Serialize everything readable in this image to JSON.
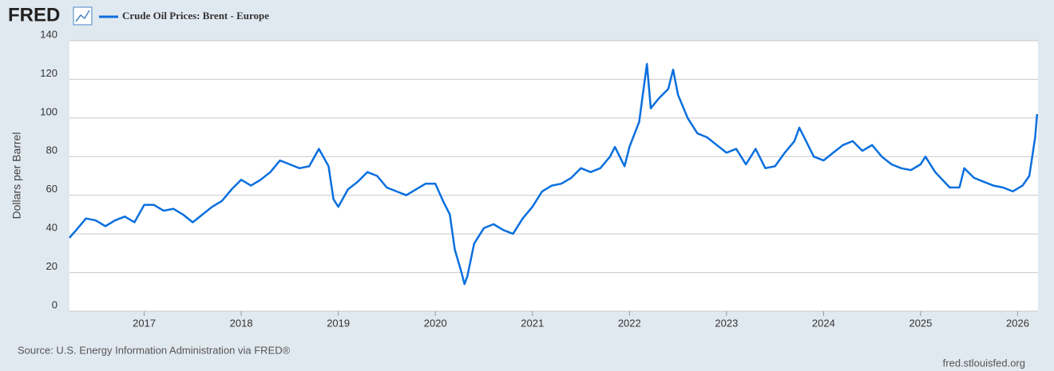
{
  "chart_data": {
    "type": "line",
    "logo": "FRED",
    "y_label": "Dollars per Barrel",
    "source": "Source: U.S. Energy Information Administration via FRED®",
    "credit": "fred.stlouisfed.org",
    "xlim": [
      2016.23,
      2026.21
    ],
    "xticks": [
      2017,
      2018,
      2019,
      2020,
      2021,
      2022,
      2023,
      2024,
      2025,
      2026
    ],
    "ylim": [
      0,
      140
    ],
    "yticks": [
      0,
      20,
      40,
      60,
      80,
      100,
      120,
      140
    ],
    "grid": true,
    "x": [
      2016.23,
      2016.3,
      2016.4,
      2016.5,
      2016.6,
      2016.7,
      2016.8,
      2016.9,
      2017.0,
      2017.1,
      2017.2,
      2017.3,
      2017.4,
      2017.5,
      2017.6,
      2017.7,
      2017.8,
      2017.9,
      2018.0,
      2018.1,
      2018.2,
      2018.3,
      2018.4,
      2018.5,
      2018.6,
      2018.7,
      2018.8,
      2018.9,
      2018.95,
      2019.0,
      2019.1,
      2019.2,
      2019.3,
      2019.4,
      2019.5,
      2019.6,
      2019.7,
      2019.8,
      2019.9,
      2020.0,
      2020.08,
      2020.15,
      2020.2,
      2020.27,
      2020.3,
      2020.33,
      2020.4,
      2020.5,
      2020.6,
      2020.7,
      2020.8,
      2020.9,
      2021.0,
      2021.1,
      2021.2,
      2021.3,
      2021.4,
      2021.5,
      2021.6,
      2021.7,
      2021.8,
      2021.85,
      2021.95,
      2022.0,
      2022.1,
      2022.18,
      2022.22,
      2022.3,
      2022.4,
      2022.45,
      2022.5,
      2022.6,
      2022.7,
      2022.8,
      2022.9,
      2023.0,
      2023.1,
      2023.2,
      2023.3,
      2023.4,
      2023.5,
      2023.6,
      2023.7,
      2023.75,
      2023.8,
      2023.9,
      2024.0,
      2024.1,
      2024.2,
      2024.3,
      2024.4,
      2024.5,
      2024.6,
      2024.7,
      2024.8,
      2024.9,
      2025.0,
      2025.05,
      2025.15,
      2025.3,
      2025.4,
      2025.45,
      2025.55,
      2025.65,
      2025.75,
      2025.85,
      2025.95,
      2026.05,
      2026.12,
      2026.18,
      2026.2
    ],
    "series": [
      {
        "name": "Crude Oil Prices: Brent - Europe",
        "color": "#0a6fde",
        "values": [
          38,
          42,
          48,
          47,
          44,
          47,
          49,
          46,
          55,
          55,
          52,
          53,
          50,
          46,
          50,
          54,
          57,
          63,
          68,
          65,
          68,
          72,
          78,
          76,
          74,
          75,
          84,
          75,
          58,
          54,
          63,
          67,
          72,
          70,
          64,
          62,
          60,
          63,
          66,
          66,
          57,
          50,
          32,
          20,
          14,
          18,
          35,
          43,
          45,
          42,
          40,
          48,
          54,
          62,
          65,
          66,
          69,
          74,
          72,
          74,
          80,
          85,
          75,
          85,
          98,
          128,
          105,
          110,
          115,
          125,
          112,
          100,
          92,
          90,
          86,
          82,
          84,
          76,
          84,
          74,
          75,
          82,
          88,
          95,
          90,
          80,
          78,
          82,
          86,
          88,
          83,
          86,
          80,
          76,
          74,
          73,
          76,
          80,
          72,
          64,
          64,
          74,
          69,
          67,
          65,
          64,
          62,
          65,
          70,
          90,
          102
        ]
      }
    ]
  }
}
